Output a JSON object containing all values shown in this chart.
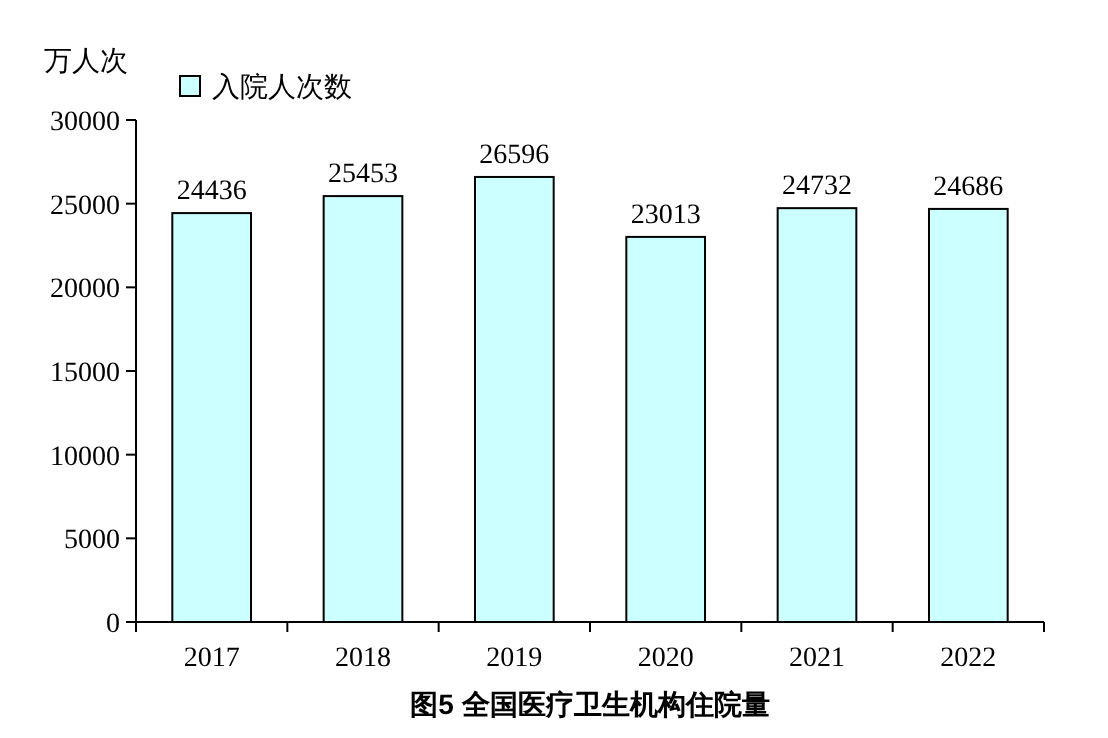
{
  "chart_data": {
    "type": "bar",
    "title": "图5 全国医疗卫生机构住院量",
    "ylabel": "万人次",
    "categories": [
      "2017",
      "2018",
      "2019",
      "2020",
      "2021",
      "2022"
    ],
    "series": [
      {
        "name": "入院人次数",
        "color": "#ccffff",
        "values": [
          24436,
          25453,
          26596,
          23013,
          24732,
          24686
        ]
      }
    ],
    "ylim": [
      0,
      30000
    ],
    "yticks": [
      0,
      5000,
      10000,
      15000,
      20000,
      25000,
      30000
    ],
    "data_labels": true,
    "legend": "top left"
  }
}
